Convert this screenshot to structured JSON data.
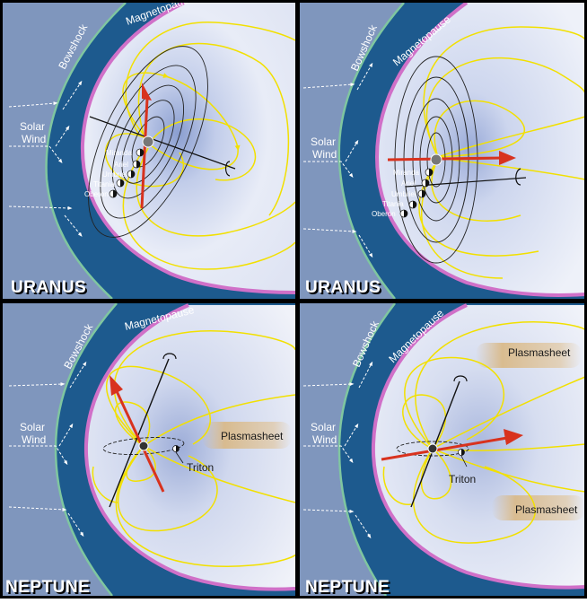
{
  "labels": {
    "bowshock": "Bowshock",
    "magnetopause": "Magnetopause",
    "solar_wind": [
      "Solar",
      "Wind"
    ],
    "plasmasheet": "Plasmasheet",
    "triton": "Triton"
  },
  "moons": [
    "Miranda",
    "Ariel",
    "Umbriel",
    "Titania",
    "Oberon"
  ],
  "panels": [
    {
      "title": "URANUS",
      "position": "top-left"
    },
    {
      "title": "URANUS",
      "position": "top-right"
    },
    {
      "title": "NEPTUNE",
      "position": "bottom-left"
    },
    {
      "title": "NEPTUNE",
      "position": "bottom-right"
    }
  ],
  "colors": {
    "outer_space": "#7f96bd",
    "magnetosheath": "#1d5a8e",
    "bowshock_line": "#7fc6a0",
    "magnetopause_line": "#d070c8",
    "field_lines": "#f2e000",
    "magnetic_axis": "#d8321e",
    "orbits": "#222222"
  }
}
